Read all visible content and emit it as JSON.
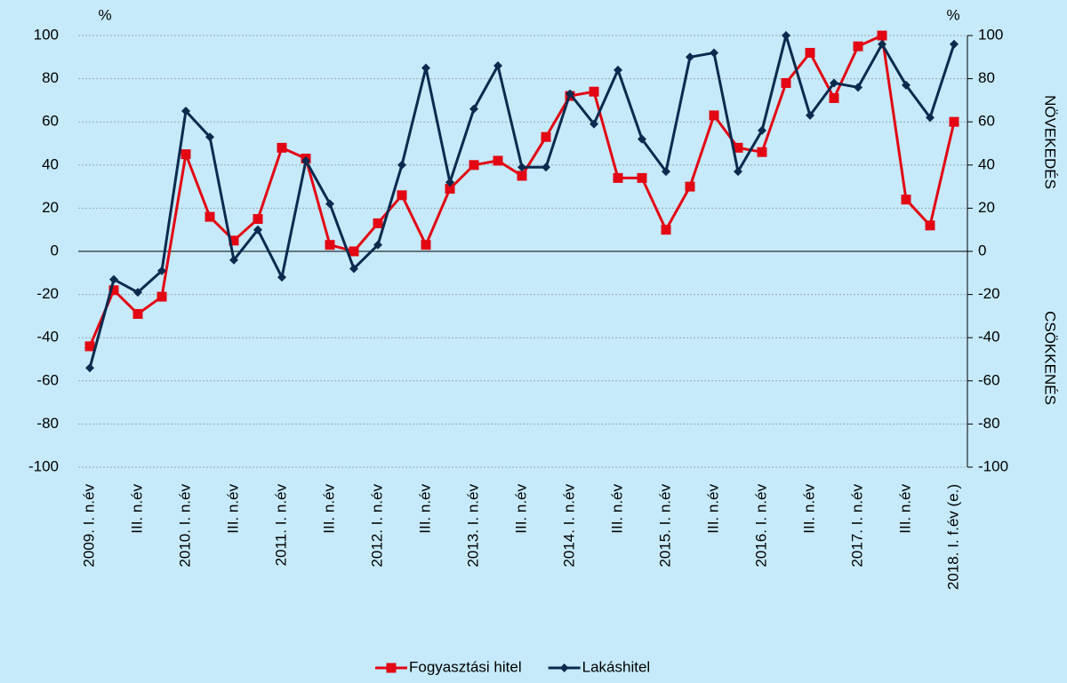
{
  "chart_data": {
    "type": "line",
    "y_unit": "%",
    "y2_unit": "%",
    "y2_label_top": "NÖVEKEDÉS",
    "y2_label_bottom": "CSÖKKENÉS",
    "categories": [
      "2009. I. n.év",
      null,
      "III. n.év",
      null,
      "2010. I. n.év",
      null,
      "III. n.év",
      null,
      "2011. I. n.év",
      null,
      "III. n.év",
      null,
      "2012. I. n.év",
      null,
      "III. n.év",
      null,
      "2013. I. n.év",
      null,
      "III. n.év",
      null,
      "2014. I. n.év",
      null,
      "III. n.év",
      null,
      "2015. I. n.év",
      null,
      "III. n.év",
      null,
      "2016. I. n.év",
      null,
      "III. n.év",
      null,
      "2017. I. n.év",
      null,
      "III. n.év",
      null,
      "2018. I. f.év (e.)"
    ],
    "series": [
      {
        "name": "Fogyasztási hitel",
        "color": "#e30613",
        "marker": "square",
        "values": [
          -44,
          -18,
          -29,
          -21,
          45,
          16,
          5,
          15,
          48,
          43,
          3,
          0,
          13,
          26,
          3,
          29,
          40,
          42,
          35,
          53,
          72,
          74,
          34,
          34,
          10,
          30,
          63,
          48,
          46,
          78,
          92,
          71,
          95,
          100,
          24,
          12,
          60
        ]
      },
      {
        "name": "Lakáshitel",
        "color": "#0c2a4e",
        "marker": "diamond",
        "values": [
          -54,
          -13,
          -19,
          -9,
          65,
          53,
          -4,
          10,
          -12,
          42,
          22,
          -8,
          3,
          40,
          85,
          32,
          66,
          86,
          39,
          39,
          73,
          59,
          84,
          52,
          37,
          90,
          92,
          37,
          56,
          100,
          63,
          78,
          76,
          96,
          77,
          62,
          96
        ]
      }
    ],
    "ylim": [
      -100,
      100
    ],
    "yticks": [
      -100,
      -80,
      -60,
      -40,
      -20,
      0,
      20,
      40,
      60,
      80,
      100
    ],
    "y2lim": [
      -100,
      100
    ],
    "y2ticks": [
      -100,
      -80,
      -60,
      -40,
      -20,
      0,
      20,
      40,
      60,
      80,
      100
    ],
    "grid": true,
    "legend": "bottom"
  }
}
